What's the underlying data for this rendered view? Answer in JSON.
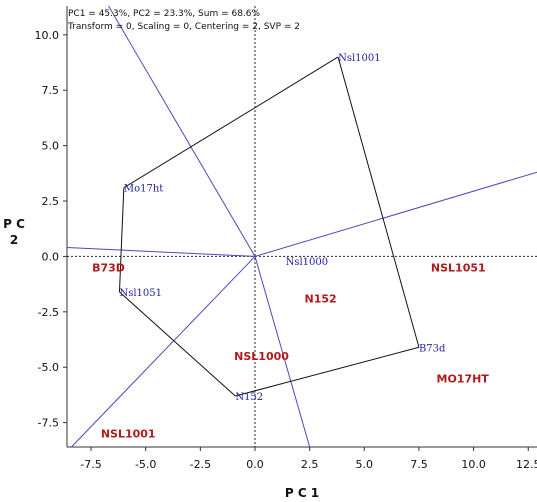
{
  "info": {
    "line1": "PC1 = 45.3%, PC2 = 23.3%, Sum = 68.6%",
    "line2": "Transform = 0, Scaling = 0, Centering = 2, SVP = 2"
  },
  "colors": {
    "entry": "#1f1fa0",
    "tester": "#b01a1a",
    "ray": "#4a4ab8",
    "polygon": "#111111"
  },
  "chart_data": {
    "type": "scatter",
    "title": "",
    "xlabel": "P C 1",
    "ylabel": "P C 2",
    "xlim": [
      -8.6,
      12.9
    ],
    "ylim": [
      -8.6,
      11.3
    ],
    "xticks": [
      -7.5,
      -5.0,
      -2.5,
      0.0,
      2.5,
      5.0,
      7.5,
      10.0,
      12.5
    ],
    "yticks": [
      -7.5,
      -5.0,
      -2.5,
      0.0,
      2.5,
      5.0,
      7.5,
      10.0
    ],
    "grid": false,
    "reference_lines": {
      "x": 0,
      "y": 0,
      "style": "dotted"
    },
    "series": [
      {
        "name": "entries",
        "points": [
          {
            "label": "Nsl1001",
            "x": 3.8,
            "y": 9.0
          },
          {
            "label": "Mo17ht",
            "x": -6.0,
            "y": 3.1
          },
          {
            "label": "Nsl1051",
            "x": -6.2,
            "y": -1.6
          },
          {
            "label": "Nsl1000",
            "x": 1.4,
            "y": -0.2
          },
          {
            "label": "N152",
            "x": -0.9,
            "y": -6.3
          },
          {
            "label": "B73d",
            "x": 7.5,
            "y": -4.1
          }
        ]
      },
      {
        "name": "testers",
        "points": [
          {
            "label": "B73D",
            "x": -6.7,
            "y": -0.5
          },
          {
            "label": "NSL1051",
            "x": 9.3,
            "y": -0.5
          },
          {
            "label": "N152",
            "x": 3.0,
            "y": -1.9
          },
          {
            "label": "NSL1000",
            "x": 0.3,
            "y": -4.5
          },
          {
            "label": "MO17HT",
            "x": 9.5,
            "y": -5.5
          },
          {
            "label": "NSL1001",
            "x": -5.8,
            "y": -8.0
          }
        ]
      }
    ],
    "polygon": [
      "Nsl1001",
      "B73d",
      "N152",
      "Nsl1051",
      "Mo17ht"
    ],
    "rays": [
      {
        "to": [
          -8.6,
          0.4
        ]
      },
      {
        "to": [
          -6.7,
          11.3
        ]
      },
      {
        "to": [
          12.9,
          3.8
        ]
      },
      {
        "to": [
          -8.4,
          -8.6
        ]
      },
      {
        "to": [
          2.5,
          -8.6
        ]
      }
    ]
  }
}
